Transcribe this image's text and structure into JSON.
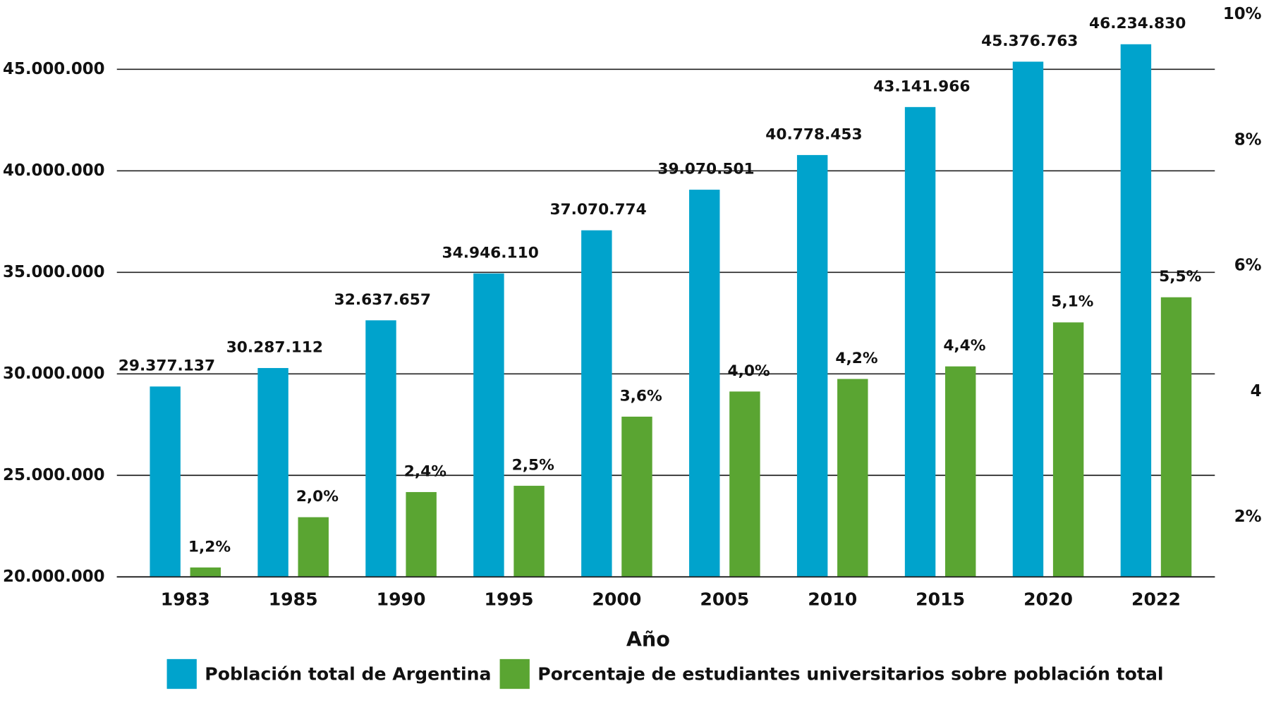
{
  "chart_data": {
    "type": "bar",
    "x_label": "Año",
    "categories": [
      "1983",
      "1985",
      "1990",
      "1995",
      "2000",
      "2005",
      "2010",
      "2015",
      "2020",
      "2022"
    ],
    "series": [
      {
        "name": "Población total de Argentina",
        "color": "#00a3cc",
        "values": [
          29377137,
          30287112,
          32637657,
          34946110,
          37070774,
          39070501,
          40778453,
          43141966,
          45376763,
          46234830
        ],
        "value_labels": [
          "29.377.137",
          "30.287.112",
          "32.637.657",
          "34.946.110",
          "37.070.774",
          "39.070.501",
          "40.778.453",
          "43.141.966",
          "45.376.763",
          "46.234.830"
        ]
      },
      {
        "name": "Porcentaje de estudiantes universitarios sobre población total",
        "color": "#5aa532",
        "axis": "y2",
        "values": [
          1.2,
          2.0,
          2.4,
          2.5,
          3.6,
          4.0,
          4.2,
          4.4,
          5.1,
          5.5
        ],
        "value_labels": [
          "1,2%",
          "2,0%",
          "2,4%",
          "2,5%",
          "3,6%",
          "4,0%",
          "4,2%",
          "4,4%",
          "5,1%",
          "5,5%"
        ]
      }
    ],
    "ylim": [
      20000000,
      47700000
    ],
    "yticks": [
      {
        "value": 20000000,
        "label": "20.000.000"
      },
      {
        "value": 25000000,
        "label": "25.000.000"
      },
      {
        "value": 30000000,
        "label": "30.000.000"
      },
      {
        "value": 35000000,
        "label": "35.000.000"
      },
      {
        "value": 40000000,
        "label": "40.000.000"
      },
      {
        "value": 45000000,
        "label": "45.000.000"
      }
    ],
    "y2lim": [
      1.05,
      10
    ],
    "y2ticks": [
      {
        "value": 2,
        "label": "2%"
      },
      4,
      {
        "value": 6,
        "label": "6%"
      },
      {
        "value": 8,
        "label": "8%"
      },
      {
        "value": 10,
        "label": "10%"
      }
    ],
    "grid": true,
    "legend": "bottom"
  }
}
